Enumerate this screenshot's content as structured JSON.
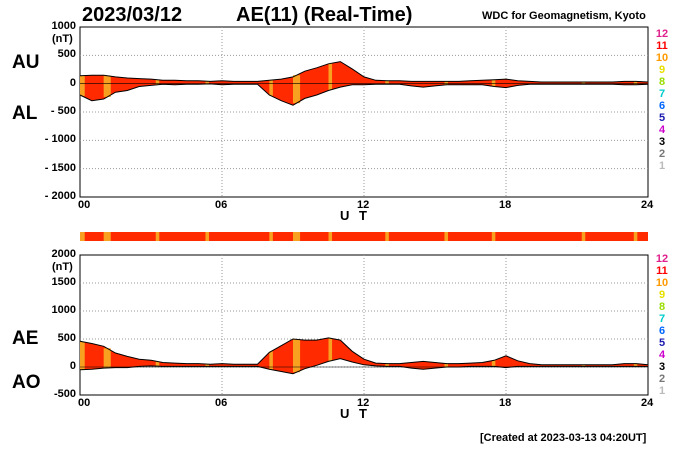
{
  "header": {
    "date": "2023/03/12",
    "title": "AE(11) (Real-Time)",
    "source": "WDC for Geomagnetism, Kyoto"
  },
  "footer": {
    "created": "[Created at 2023-03-13 04:20UT]"
  },
  "colors": {
    "fill_main": "#ff2a00",
    "fill_alt": "#f8a020",
    "outline": "#000000",
    "grid": "#999999"
  },
  "legend": [
    {
      "label": "12",
      "color": "#e0208c"
    },
    {
      "label": "11",
      "color": "#ff0000"
    },
    {
      "label": "10",
      "color": "#ff9900"
    },
    {
      "label": "9",
      "color": "#e8e000"
    },
    {
      "label": "8",
      "color": "#99dd00"
    },
    {
      "label": "7",
      "color": "#00cccc"
    },
    {
      "label": "6",
      "color": "#0066ff"
    },
    {
      "label": "5",
      "color": "#1a1ab0"
    },
    {
      "label": "4",
      "color": "#cc00cc"
    },
    {
      "label": "3",
      "color": "#000000"
    },
    {
      "label": "2",
      "color": "#777777"
    },
    {
      "label": "1",
      "color": "#bbbbbb"
    }
  ],
  "chart_data": [
    {
      "type": "area",
      "name": "AU/AL",
      "upper_label": "AU",
      "lower_label": "AL",
      "unit": "(nT)",
      "ylim": [
        -2000,
        1000
      ],
      "yticks": [
        "1000",
        "500",
        "0",
        "- 500",
        "- 1000",
        "- 1500",
        "- 2000"
      ],
      "ytick_values": [
        1000,
        500,
        0,
        -500,
        -1000,
        -1500,
        -2000
      ],
      "xlim": [
        0,
        24
      ],
      "xticks": [
        "00",
        "06",
        "12",
        "18",
        "24"
      ],
      "xlabel": "U T",
      "x": [
        0,
        0.5,
        1,
        1.5,
        2,
        2.5,
        3,
        3.5,
        4,
        4.5,
        5,
        5.5,
        6,
        6.5,
        7,
        7.5,
        8,
        8.5,
        9,
        9.5,
        10,
        10.5,
        11,
        11.5,
        12,
        12.5,
        13,
        13.5,
        14,
        14.5,
        15,
        15.5,
        16,
        16.5,
        17,
        17.5,
        18,
        18.5,
        19,
        19.5,
        20,
        20.5,
        21,
        21.5,
        22,
        22.5,
        23,
        23.5,
        24
      ],
      "upper": [
        140,
        150,
        150,
        120,
        100,
        90,
        80,
        60,
        60,
        50,
        50,
        40,
        50,
        40,
        40,
        40,
        60,
        80,
        120,
        220,
        280,
        350,
        390,
        260,
        120,
        60,
        50,
        50,
        40,
        40,
        40,
        40,
        40,
        50,
        60,
        70,
        80,
        50,
        40,
        30,
        30,
        30,
        30,
        30,
        30,
        30,
        40,
        40,
        30
      ],
      "lower": [
        -200,
        -300,
        -270,
        -150,
        -120,
        -50,
        -30,
        -10,
        -20,
        -10,
        -10,
        -5,
        -20,
        -10,
        -10,
        -10,
        -200,
        -300,
        -380,
        -260,
        -200,
        -120,
        -60,
        -20,
        -20,
        -10,
        -10,
        -10,
        -40,
        -60,
        -40,
        -20,
        -20,
        -20,
        -20,
        -50,
        -70,
        -30,
        -10,
        -10,
        -10,
        -10,
        -10,
        -10,
        -10,
        -10,
        -20,
        -20,
        -10
      ]
    },
    {
      "type": "area",
      "name": "AE/AO",
      "upper_label": "AE",
      "lower_label": "AO",
      "unit": "(nT)",
      "ylim": [
        -500,
        2000
      ],
      "yticks": [
        "2000",
        "1500",
        "1000",
        "500",
        "0",
        "-500"
      ],
      "ytick_values": [
        2000,
        1500,
        1000,
        500,
        0,
        -500
      ],
      "xlim": [
        0,
        24
      ],
      "xticks": [
        "00",
        "06",
        "12",
        "18",
        "24"
      ],
      "xlabel": "U T",
      "x": [
        0,
        0.5,
        1,
        1.5,
        2,
        2.5,
        3,
        3.5,
        4,
        4.5,
        5,
        5.5,
        6,
        6.5,
        7,
        7.5,
        8,
        8.5,
        9,
        9.5,
        10,
        10.5,
        11,
        11.5,
        12,
        12.5,
        13,
        13.5,
        14,
        14.5,
        15,
        15.5,
        16,
        16.5,
        17,
        17.5,
        18,
        18.5,
        19,
        19.5,
        20,
        20.5,
        21,
        21.5,
        22,
        22.5,
        23,
        23.5,
        24
      ],
      "upper": [
        460,
        420,
        370,
        250,
        190,
        140,
        120,
        80,
        70,
        60,
        60,
        50,
        60,
        50,
        50,
        50,
        260,
        380,
        500,
        480,
        480,
        520,
        480,
        280,
        140,
        70,
        60,
        60,
        80,
        100,
        80,
        60,
        60,
        70,
        80,
        120,
        200,
        110,
        60,
        40,
        40,
        40,
        40,
        40,
        40,
        40,
        60,
        60,
        40
      ],
      "lower": [
        -50,
        -40,
        -20,
        -10,
        -10,
        10,
        20,
        10,
        10,
        10,
        10,
        10,
        10,
        10,
        10,
        10,
        -40,
        -80,
        -120,
        -30,
        30,
        100,
        150,
        90,
        40,
        20,
        10,
        10,
        -20,
        -40,
        -20,
        0,
        0,
        10,
        10,
        10,
        -10,
        10,
        10,
        10,
        10,
        10,
        10,
        10,
        10,
        10,
        10,
        10,
        10
      ]
    }
  ],
  "status_bar": {
    "segments_hours": [
      {
        "from": 0,
        "to": 0.2,
        "level": "10"
      },
      {
        "from": 1,
        "to": 1.3,
        "level": "10"
      },
      {
        "from": 3.2,
        "to": 3.35,
        "level": "10"
      },
      {
        "from": 5.3,
        "to": 5.45,
        "level": "10"
      },
      {
        "from": 8,
        "to": 8.15,
        "level": "10"
      },
      {
        "from": 9,
        "to": 9.3,
        "level": "10"
      },
      {
        "from": 10.5,
        "to": 10.65,
        "level": "10"
      },
      {
        "from": 12.9,
        "to": 13.05,
        "level": "10"
      },
      {
        "from": 15.4,
        "to": 15.55,
        "level": "10"
      },
      {
        "from": 17.4,
        "to": 17.55,
        "level": "10"
      },
      {
        "from": 21.2,
        "to": 21.35,
        "level": "10"
      },
      {
        "from": 23.4,
        "to": 23.55,
        "level": "10"
      }
    ]
  }
}
